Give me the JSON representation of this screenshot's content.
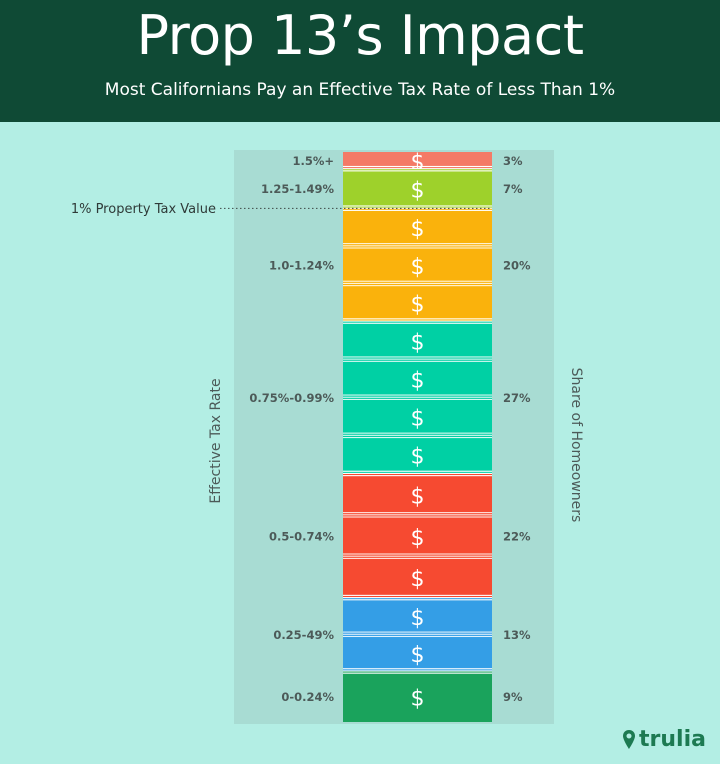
{
  "header": {
    "title": "Prop 13’s Impact",
    "subtitle": "Most Californians Pay an Effective Tax Rate of Less Than 1%"
  },
  "brand": {
    "name": "trulia"
  },
  "chart_data": {
    "type": "bar",
    "orientation": "stacked-column",
    "title": "Prop 13’s Impact",
    "subtitle": "Most Californians Pay an Effective Tax Rate of Less Than 1%",
    "left_axis_label": "Effective Tax Rate",
    "right_axis_label": "Share of Homeowners",
    "unit_symbol": "$",
    "reference_line": {
      "label": "1% Property Tax Value"
    },
    "segments": [
      {
        "category": "1.5%+",
        "share_label": "3%",
        "value": 3,
        "color": "#f47a66"
      },
      {
        "category": "1.25-1.49%",
        "share_label": "7%",
        "value": 7,
        "color": "#9ed12b"
      },
      {
        "category": "1.0-1.24%",
        "share_label": "20%",
        "value": 20,
        "color": "#fab20c"
      },
      {
        "category": "0.75%-0.99%",
        "share_label": "27%",
        "value": 27,
        "color": "#00d0a4"
      },
      {
        "category": "0.5-0.74%",
        "share_label": "22%",
        "value": 22,
        "color": "#f64a31"
      },
      {
        "category": "0.25-49%",
        "share_label": "13%",
        "value": 13,
        "color": "#349ee6"
      },
      {
        "category": "0-0.24%",
        "share_label": "9%",
        "value": 9,
        "color": "#1aa35c"
      }
    ],
    "colors": {
      "panel": "#a8dcd3",
      "label_text": "#4c5a58",
      "separator": "#ffffff"
    }
  }
}
